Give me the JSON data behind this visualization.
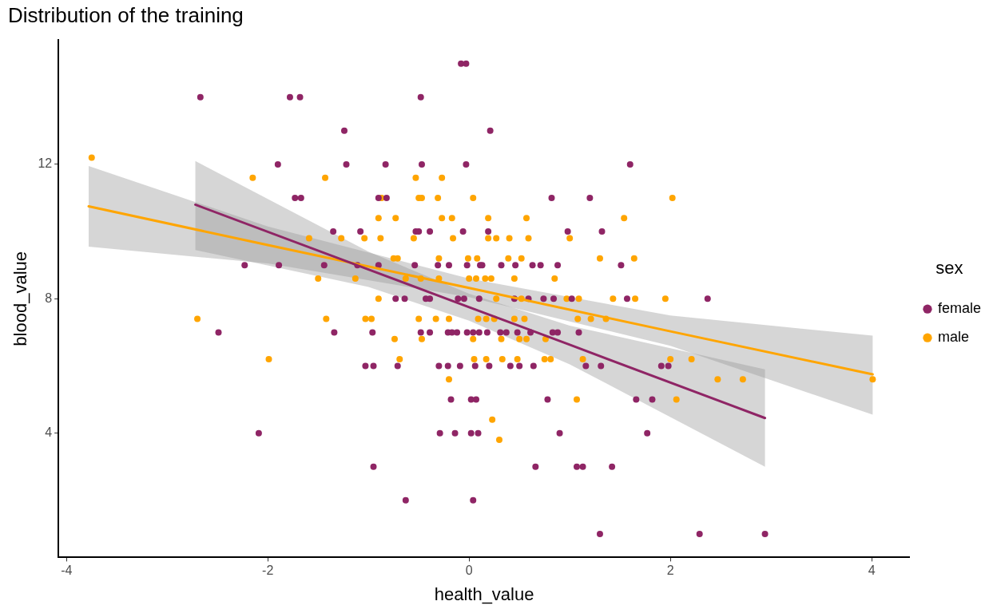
{
  "chart_data": {
    "type": "scatter",
    "title": "Distribution of the training",
    "xlabel": "health_value",
    "ylabel": "blood_value",
    "legend_title": "sex",
    "legend": "right",
    "marker": "circle",
    "xlim": [
      -4.08,
      4.38
    ],
    "ylim": [
      0.3,
      15.7
    ],
    "xticks": [
      -4,
      -2,
      0,
      2,
      4
    ],
    "yticks": [
      4,
      8,
      12
    ],
    "series": [
      {
        "name": "female",
        "color": "#8f2565",
        "x": [
          -0.08,
          -0.03,
          -2.67,
          -1.78,
          -1.68,
          -0.48,
          -1.24,
          0.21,
          -1.9,
          -1.22,
          -0.83,
          -0.47,
          -0.03,
          1.6,
          -1.73,
          -1.67,
          -0.9,
          -0.82,
          0.82,
          1.2,
          -1.35,
          -1.08,
          -0.53,
          -0.5,
          -0.39,
          -0.06,
          0.19,
          0.98,
          1.32,
          -2.23,
          -1.89,
          -1.44,
          -1.11,
          -0.9,
          -0.54,
          -0.31,
          -0.2,
          -0.02,
          0.11,
          0.13,
          0.32,
          0.46,
          0.63,
          0.71,
          0.88,
          1.51,
          -0.73,
          -0.64,
          -0.43,
          -0.39,
          -0.11,
          -0.05,
          0.1,
          0.45,
          0.59,
          0.74,
          0.84,
          1.02,
          1.57,
          2.37,
          -2.49,
          -1.34,
          -0.96,
          -0.48,
          -0.39,
          -0.21,
          -0.17,
          -0.12,
          -0.02,
          0.04,
          0.1,
          0.18,
          0.31,
          0.37,
          0.48,
          0.61,
          0.83,
          0.88,
          1.09,
          -1.03,
          -0.95,
          -0.71,
          -0.3,
          -0.21,
          -0.09,
          0.06,
          0.2,
          0.41,
          0.5,
          0.64,
          1.16,
          1.31,
          1.91,
          1.98,
          -0.18,
          0.02,
          0.07,
          0.78,
          1.66,
          1.82,
          -2.09,
          -0.29,
          -0.14,
          0.02,
          0.09,
          0.9,
          1.77,
          -0.95,
          0.66,
          1.07,
          1.13,
          1.42,
          -0.63,
          0.04,
          1.3,
          2.29,
          2.94
        ],
        "values": [
          15,
          15,
          14,
          14,
          14,
          14,
          13,
          13,
          12,
          12,
          12,
          12,
          12,
          12,
          11,
          11,
          11,
          11,
          11,
          11,
          10,
          10,
          10,
          10,
          10,
          10,
          10,
          10,
          10,
          9,
          9,
          9,
          9,
          9,
          9,
          9,
          9,
          9,
          9,
          9,
          9,
          9,
          9,
          9,
          9,
          9,
          8,
          8,
          8,
          8,
          8,
          8,
          8,
          8,
          8,
          8,
          8,
          8,
          8,
          8,
          7,
          7,
          7,
          7,
          7,
          7,
          7,
          7,
          7,
          7,
          7,
          7,
          7,
          7,
          7,
          7,
          7,
          7,
          7,
          6,
          6,
          6,
          6,
          6,
          6,
          6,
          6,
          6,
          6,
          6,
          6,
          6,
          6,
          6,
          5,
          5,
          5,
          5,
          5,
          5,
          4,
          4,
          4,
          4,
          4,
          4,
          4,
          3,
          3,
          3,
          3,
          3,
          2,
          2,
          1,
          1,
          1
        ]
      },
      {
        "name": "male",
        "color": "#ffa500",
        "x": [
          -3.75,
          -2.15,
          -1.43,
          -0.53,
          -0.27,
          -0.87,
          -0.5,
          -0.47,
          -0.31,
          0.04,
          2.02,
          -0.9,
          -0.73,
          -0.27,
          -0.17,
          0.19,
          0.57,
          1.54,
          -1.59,
          -1.27,
          -1.04,
          -0.88,
          -0.55,
          -0.16,
          0.19,
          0.27,
          0.4,
          0.59,
          1.0,
          -0.75,
          -0.71,
          -0.3,
          -0.01,
          0.08,
          0.39,
          0.52,
          1.3,
          1.64,
          -1.5,
          -1.13,
          -0.63,
          -0.48,
          -0.3,
          0.0,
          0.07,
          0.16,
          0.22,
          0.45,
          0.85,
          -0.9,
          0.27,
          0.52,
          0.97,
          1.09,
          1.43,
          1.65,
          1.95,
          -2.7,
          -1.42,
          -1.03,
          -0.97,
          -0.5,
          -0.33,
          -0.2,
          0.09,
          0.17,
          0.25,
          0.45,
          0.55,
          1.08,
          1.21,
          1.36,
          -0.74,
          -0.47,
          0.04,
          0.32,
          0.5,
          0.57,
          0.76,
          -1.99,
          -0.69,
          0.05,
          0.17,
          0.33,
          0.48,
          0.75,
          0.81,
          1.13,
          2.0,
          2.21,
          -0.2,
          2.47,
          2.72,
          4.01,
          1.07,
          2.06,
          0.23,
          0.3
        ],
        "values": [
          12.2,
          11.6,
          11.6,
          11.6,
          11.6,
          11,
          11,
          11,
          11,
          11,
          11,
          10.4,
          10.4,
          10.4,
          10.4,
          10.4,
          10.4,
          10.4,
          9.8,
          9.8,
          9.8,
          9.8,
          9.8,
          9.8,
          9.8,
          9.8,
          9.8,
          9.8,
          9.8,
          9.2,
          9.2,
          9.2,
          9.2,
          9.2,
          9.2,
          9.2,
          9.2,
          9.2,
          8.6,
          8.6,
          8.6,
          8.6,
          8.6,
          8.6,
          8.6,
          8.6,
          8.6,
          8.6,
          8.6,
          8,
          8,
          8,
          8,
          8,
          8,
          8,
          8,
          7.4,
          7.4,
          7.4,
          7.4,
          7.4,
          7.4,
          7.4,
          7.4,
          7.4,
          7.4,
          7.4,
          7.4,
          7.4,
          7.4,
          7.4,
          6.8,
          6.8,
          6.8,
          6.8,
          6.8,
          6.8,
          6.8,
          6.2,
          6.2,
          6.2,
          6.2,
          6.2,
          6.2,
          6.2,
          6.2,
          6.2,
          6.2,
          6.2,
          5.6,
          5.6,
          5.6,
          5.6,
          5,
          5,
          4.4,
          3.8
        ]
      },
      {
        "color": "#8f2565",
        "type": "line",
        "marker": "none",
        "x": [
          -2.72,
          -1,
          0,
          1,
          2.94
        ],
        "values": [
          10.8,
          8.87,
          7.75,
          6.63,
          4.45
        ],
        "lower": [
          9.45,
          8.35,
          7.35,
          6.05,
          3.0
        ],
        "upper": [
          12.1,
          9.4,
          8.15,
          7.2,
          5.9
        ]
      },
      {
        "color": "#ffa500",
        "type": "line",
        "marker": "none",
        "x": [
          -3.78,
          -2,
          0,
          2,
          4.01
        ],
        "values": [
          10.75,
          9.6,
          8.32,
          7.03,
          5.75
        ],
        "lower": [
          9.55,
          9.05,
          8.05,
          6.6,
          4.55
        ],
        "upper": [
          11.95,
          10.15,
          8.6,
          7.5,
          6.9
        ]
      }
    ]
  }
}
